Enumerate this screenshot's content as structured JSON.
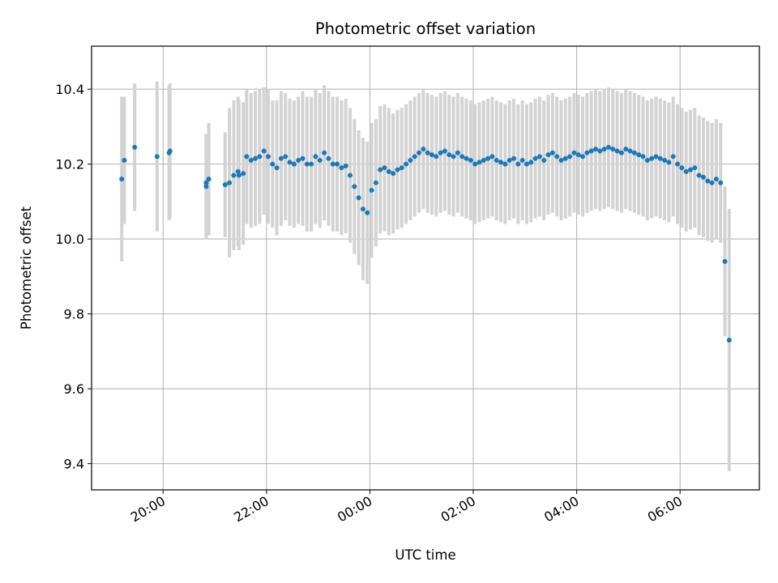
{
  "chart_data": {
    "type": "scatter",
    "title": "Photometric offset variation",
    "xlabel": "UTC time",
    "ylabel": "Photometric offset",
    "ylim": [
      9.33,
      10.515
    ],
    "ytick_values": [
      9.4,
      9.6,
      9.8,
      10.0,
      10.2,
      10.4
    ],
    "ytick_labels": [
      "9.4",
      "9.6",
      "9.8",
      "10.0",
      "10.2",
      "10.4"
    ],
    "xtick_values": [
      "20:00",
      "22:00",
      "00:00",
      "02:00",
      "04:00",
      "06:00"
    ],
    "xtick_labels": [
      "20:00",
      "22:00",
      "00:00",
      "02:00",
      "04:00",
      "06:00"
    ],
    "xlim": [
      "18:37",
      "07:32"
    ],
    "grid": true,
    "x_axis_format": "time HH:MM, labels rotated 30 degrees",
    "errorbar_color": "#d3d3d3",
    "point_color": "#1f77b4",
    "series": [
      {
        "x": [
          "19:12",
          "19:15",
          "19:27",
          "19:53",
          "20:07",
          "20:08",
          "20:50",
          "20:50",
          "20:53",
          "21:12",
          "21:17",
          "21:22",
          "21:27",
          "21:28",
          "21:33",
          "21:37",
          "21:42",
          "21:47",
          "21:52",
          "21:57",
          "22:02",
          "22:07",
          "22:12",
          "22:17",
          "22:22",
          "22:27",
          "22:32",
          "22:37",
          "22:42",
          "22:47",
          "22:52",
          "22:57",
          "23:02",
          "23:07",
          "23:12",
          "23:17",
          "23:22",
          "23:27",
          "23:32",
          "23:37",
          "23:42",
          "23:47",
          "23:52",
          "23:57",
          "00:02",
          "00:07",
          "00:12",
          "00:17",
          "00:22",
          "00:27",
          "00:32",
          "00:37",
          "00:42",
          "00:47",
          "00:52",
          "00:57",
          "01:02",
          "01:07",
          "01:12",
          "01:17",
          "01:22",
          "01:27",
          "01:32",
          "01:37",
          "01:42",
          "01:47",
          "01:52",
          "01:57",
          "02:02",
          "02:07",
          "02:12",
          "02:17",
          "02:22",
          "02:27",
          "02:32",
          "02:37",
          "02:42",
          "02:47",
          "02:52",
          "02:57",
          "03:02",
          "03:07",
          "03:12",
          "03:17",
          "03:22",
          "03:27",
          "03:32",
          "03:37",
          "03:42",
          "03:47",
          "03:52",
          "03:57",
          "04:02",
          "04:07",
          "04:12",
          "04:17",
          "04:22",
          "04:27",
          "04:32",
          "04:37",
          "04:42",
          "04:47",
          "04:52",
          "04:57",
          "05:02",
          "05:07",
          "05:12",
          "05:17",
          "05:22",
          "05:27",
          "05:32",
          "05:37",
          "05:42",
          "05:47",
          "05:52",
          "05:57",
          "06:02",
          "06:07",
          "06:12",
          "06:17",
          "06:22",
          "06:27",
          "06:32",
          "06:37",
          "06:42",
          "06:47",
          "06:52",
          "06:57"
        ],
        "y": [
          10.16,
          10.21,
          10.245,
          10.22,
          10.23,
          10.235,
          10.14,
          10.15,
          10.16,
          10.145,
          10.15,
          10.17,
          10.18,
          10.17,
          10.175,
          10.22,
          10.21,
          10.215,
          10.22,
          10.235,
          10.22,
          10.2,
          10.19,
          10.215,
          10.22,
          10.205,
          10.2,
          10.21,
          10.215,
          10.2,
          10.2,
          10.22,
          10.21,
          10.23,
          10.215,
          10.2,
          10.2,
          10.19,
          10.195,
          10.17,
          10.14,
          10.11,
          10.08,
          10.07,
          10.13,
          10.15,
          10.185,
          10.19,
          10.18,
          10.175,
          10.185,
          10.19,
          10.2,
          10.21,
          10.22,
          10.23,
          10.24,
          10.23,
          10.225,
          10.22,
          10.23,
          10.235,
          10.225,
          10.22,
          10.23,
          10.22,
          10.215,
          10.21,
          10.2,
          10.205,
          10.21,
          10.215,
          10.22,
          10.21,
          10.205,
          10.2,
          10.21,
          10.215,
          10.2,
          10.21,
          10.2,
          10.205,
          10.215,
          10.22,
          10.21,
          10.225,
          10.23,
          10.22,
          10.21,
          10.215,
          10.22,
          10.23,
          10.225,
          10.22,
          10.23,
          10.235,
          10.24,
          10.235,
          10.24,
          10.245,
          10.24,
          10.235,
          10.23,
          10.24,
          10.235,
          10.23,
          10.225,
          10.22,
          10.21,
          10.215,
          10.22,
          10.215,
          10.21,
          10.205,
          10.22,
          10.2,
          10.19,
          10.18,
          10.185,
          10.19,
          10.17,
          10.165,
          10.155,
          10.15,
          10.16,
          10.15,
          9.94,
          9.73
        ],
        "yerr": [
          0.22,
          0.17,
          0.17,
          0.2,
          0.18,
          0.18,
          0.14,
          0.13,
          0.15,
          0.14,
          0.2,
          0.2,
          0.2,
          0.2,
          0.19,
          0.18,
          0.18,
          0.18,
          0.18,
          0.17,
          0.18,
          0.17,
          0.18,
          0.18,
          0.17,
          0.17,
          0.17,
          0.17,
          0.18,
          0.18,
          0.18,
          0.18,
          0.18,
          0.18,
          0.18,
          0.18,
          0.18,
          0.18,
          0.18,
          0.18,
          0.18,
          0.18,
          0.19,
          0.19,
          0.18,
          0.17,
          0.17,
          0.17,
          0.17,
          0.16,
          0.16,
          0.16,
          0.16,
          0.16,
          0.16,
          0.16,
          0.16,
          0.16,
          0.16,
          0.16,
          0.16,
          0.16,
          0.16,
          0.16,
          0.16,
          0.16,
          0.16,
          0.16,
          0.16,
          0.16,
          0.16,
          0.16,
          0.16,
          0.16,
          0.16,
          0.16,
          0.16,
          0.16,
          0.16,
          0.16,
          0.16,
          0.16,
          0.16,
          0.16,
          0.16,
          0.16,
          0.16,
          0.16,
          0.16,
          0.16,
          0.16,
          0.16,
          0.16,
          0.16,
          0.16,
          0.16,
          0.16,
          0.16,
          0.16,
          0.16,
          0.16,
          0.16,
          0.16,
          0.16,
          0.16,
          0.16,
          0.16,
          0.16,
          0.16,
          0.16,
          0.16,
          0.16,
          0.16,
          0.16,
          0.16,
          0.16,
          0.16,
          0.16,
          0.16,
          0.16,
          0.16,
          0.16,
          0.16,
          0.16,
          0.16,
          0.16,
          0.2,
          0.35
        ]
      }
    ]
  }
}
